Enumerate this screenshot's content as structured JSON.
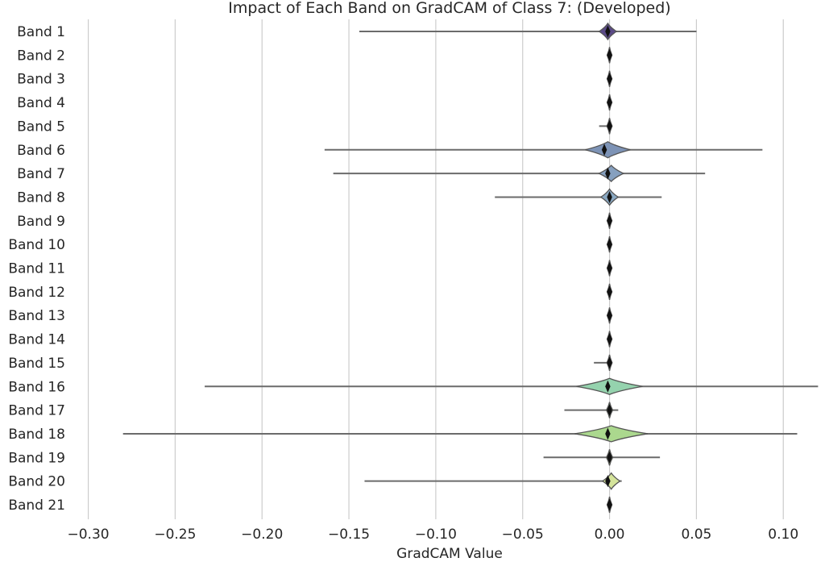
{
  "chart_data": {
    "type": "violin",
    "title": "Impact of Each Band on GradCAM of Class 7: (Developed)",
    "xlabel": "GradCAM Value",
    "ylabel": "",
    "xlim": [
      -0.31,
      0.124
    ],
    "xticks": [
      -0.3,
      -0.25,
      -0.2,
      -0.15,
      -0.1,
      -0.05,
      0.0,
      0.05,
      0.1
    ],
    "xtick_labels": [
      "−0.30",
      "−0.25",
      "−0.20",
      "−0.15",
      "−0.10",
      "−0.05",
      "0.00",
      "0.05",
      "0.10"
    ],
    "grid": "vertical",
    "categories": [
      "Band 1",
      "Band 2",
      "Band 3",
      "Band 4",
      "Band 5",
      "Band 6",
      "Band 7",
      "Band 8",
      "Band 9",
      "Band 10",
      "Band 11",
      "Band 12",
      "Band 13",
      "Band 14",
      "Band 15",
      "Band 16",
      "Band 17",
      "Band 18",
      "Band 19",
      "Band 20",
      "Band 21"
    ],
    "series": [
      {
        "category": "Band 1",
        "min": -0.144,
        "max": 0.05,
        "median": -0.001,
        "center": -0.001,
        "width": 0.005,
        "color": "#5b4a87"
      },
      {
        "category": "Band 2",
        "min": 0.0,
        "max": 0.0,
        "median": 0.0,
        "center": 0.0,
        "width": 0.0012,
        "color": "#574e8a"
      },
      {
        "category": "Band 3",
        "min": 0.0,
        "max": 0.0,
        "median": 0.0,
        "center": 0.0,
        "width": 0.0012,
        "color": "#52568c"
      },
      {
        "category": "Band 4",
        "min": 0.0,
        "max": 0.0,
        "median": 0.0,
        "center": 0.0,
        "width": 0.0012,
        "color": "#4f5e8e"
      },
      {
        "category": "Band 5",
        "min": -0.006,
        "max": 0.0,
        "median": 0.0,
        "center": 0.0,
        "width": 0.0015,
        "color": "#4c6690"
      },
      {
        "category": "Band 6",
        "min": -0.164,
        "max": 0.088,
        "median": -0.003,
        "center": -0.001,
        "width": 0.013,
        "color": "#7d93b6"
      },
      {
        "category": "Band 7",
        "min": -0.159,
        "max": 0.055,
        "median": -0.001,
        "center": 0.001,
        "width": 0.007,
        "color": "#86a0bf"
      },
      {
        "category": "Band 8",
        "min": -0.066,
        "max": 0.03,
        "median": 0.0,
        "center": 0.0,
        "width": 0.005,
        "color": "#8aa8c2"
      },
      {
        "category": "Band 9",
        "min": 0.0,
        "max": 0.0,
        "median": 0.0,
        "center": 0.0,
        "width": 0.0012,
        "color": "#3d8a99"
      },
      {
        "category": "Band 10",
        "min": 0.0,
        "max": 0.0,
        "median": 0.0,
        "center": 0.0,
        "width": 0.0012,
        "color": "#37929a"
      },
      {
        "category": "Band 11",
        "min": 0.0,
        "max": 0.0,
        "median": 0.0,
        "center": 0.0,
        "width": 0.0012,
        "color": "#349a9b"
      },
      {
        "category": "Band 12",
        "min": 0.0,
        "max": 0.0,
        "median": 0.0,
        "center": 0.0,
        "width": 0.0012,
        "color": "#33a29b"
      },
      {
        "category": "Band 13",
        "min": 0.0,
        "max": 0.0,
        "median": 0.0,
        "center": 0.0,
        "width": 0.0012,
        "color": "#36aa99"
      },
      {
        "category": "Band 14",
        "min": 0.0,
        "max": 0.0,
        "median": 0.0,
        "center": 0.0,
        "width": 0.0012,
        "color": "#3eb296"
      },
      {
        "category": "Band 15",
        "min": -0.009,
        "max": 0.001,
        "median": 0.0,
        "center": 0.0,
        "width": 0.0015,
        "color": "#4aba91"
      },
      {
        "category": "Band 16",
        "min": -0.233,
        "max": 0.12,
        "median": -0.001,
        "center": 0.0,
        "width": 0.019,
        "color": "#95d3ae"
      },
      {
        "category": "Band 17",
        "min": -0.026,
        "max": 0.005,
        "median": 0.0,
        "center": 0.0,
        "width": 0.0018,
        "color": "#6cc583"
      },
      {
        "category": "Band 18",
        "min": -0.28,
        "max": 0.108,
        "median": -0.001,
        "center": 0.001,
        "width": 0.021,
        "color": "#abd88e"
      },
      {
        "category": "Band 19",
        "min": -0.038,
        "max": 0.029,
        "median": 0.0,
        "center": 0.0,
        "width": 0.0018,
        "color": "#9bd26b"
      },
      {
        "category": "Band 20",
        "min": -0.141,
        "max": 0.007,
        "median": -0.001,
        "center": 0.001,
        "width": 0.005,
        "color": "#d5e49b"
      },
      {
        "category": "Band 21",
        "min": 0.0,
        "max": 0.0,
        "median": 0.0,
        "center": 0.0,
        "width": 0.0012,
        "color": "#c9dc5a"
      }
    ]
  }
}
